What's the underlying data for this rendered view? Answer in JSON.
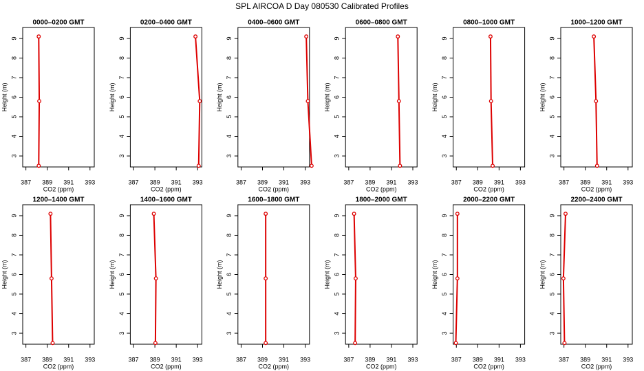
{
  "title": "SPL AIRCOA D  Day 080530  Calibrated Profiles",
  "chart_data": [
    {
      "type": "line",
      "title": "0000–0200 GMT",
      "x_label": "CO2 (ppm)",
      "y_label": "Height (m)",
      "color": "#dd0000",
      "x": [
        388.2,
        388.25,
        388.2
      ],
      "values": [
        9.1,
        5.8,
        2.5
      ],
      "xlim": [
        386.7,
        393.4
      ],
      "xticks": [
        387,
        389,
        391,
        393
      ],
      "ylim": [
        2.44,
        9.56
      ],
      "yticks": [
        3,
        4,
        5,
        6,
        7,
        8,
        9
      ]
    },
    {
      "type": "line",
      "title": "0200–0400 GMT",
      "x_label": "CO2 (ppm)",
      "y_label": "Height (m)",
      "color": "#dd0000",
      "x": [
        392.8,
        393.2,
        393.1
      ],
      "values": [
        9.1,
        5.8,
        2.5
      ],
      "xlim": [
        386.7,
        393.4
      ],
      "xticks": [
        387,
        389,
        391,
        393
      ],
      "ylim": [
        2.44,
        9.56
      ],
      "yticks": [
        3,
        4,
        5,
        6,
        7,
        8,
        9
      ]
    },
    {
      "type": "line",
      "title": "0400–0600 GMT",
      "x_label": "CO2 (ppm)",
      "y_label": "Height (m)",
      "color": "#dd0000",
      "x": [
        393.1,
        393.25,
        393.6
      ],
      "values": [
        9.1,
        5.8,
        2.5
      ],
      "xlim": [
        386.7,
        393.4
      ],
      "xticks": [
        387,
        389,
        391,
        393
      ],
      "ylim": [
        2.44,
        9.56
      ],
      "yticks": [
        3,
        4,
        5,
        6,
        7,
        8,
        9
      ]
    },
    {
      "type": "line",
      "title": "0600–0800 GMT",
      "x_label": "CO2 (ppm)",
      "y_label": "Height (m)",
      "color": "#dd0000",
      "x": [
        391.6,
        391.7,
        391.8
      ],
      "values": [
        9.1,
        5.8,
        2.5
      ],
      "xlim": [
        386.7,
        393.4
      ],
      "xticks": [
        387,
        389,
        391,
        393
      ],
      "ylim": [
        2.44,
        9.56
      ],
      "yticks": [
        3,
        4,
        5,
        6,
        7,
        8,
        9
      ]
    },
    {
      "type": "line",
      "title": "0800–1000 GMT",
      "x_label": "CO2 (ppm)",
      "y_label": "Height (m)",
      "color": "#dd0000",
      "x": [
        390.2,
        390.25,
        390.4
      ],
      "values": [
        9.1,
        5.8,
        2.5
      ],
      "xlim": [
        386.7,
        393.4
      ],
      "xticks": [
        387,
        389,
        391,
        393
      ],
      "ylim": [
        2.44,
        9.56
      ],
      "yticks": [
        3,
        4,
        5,
        6,
        7,
        8,
        9
      ]
    },
    {
      "type": "line",
      "title": "1000–1200 GMT",
      "x_label": "CO2 (ppm)",
      "y_label": "Height (m)",
      "color": "#dd0000",
      "x": [
        389.8,
        390.0,
        390.1
      ],
      "values": [
        9.1,
        5.8,
        2.5
      ],
      "xlim": [
        386.7,
        393.4
      ],
      "xticks": [
        387,
        389,
        391,
        393
      ],
      "ylim": [
        2.44,
        9.56
      ],
      "yticks": [
        3,
        4,
        5,
        6,
        7,
        8,
        9
      ]
    },
    {
      "type": "line",
      "title": "1200–1400 GMT",
      "x_label": "CO2 (ppm)",
      "y_label": "Height (m)",
      "color": "#dd0000",
      "x": [
        389.3,
        389.4,
        389.5
      ],
      "values": [
        9.1,
        5.8,
        2.5
      ],
      "xlim": [
        386.7,
        393.4
      ],
      "xticks": [
        387,
        389,
        391,
        393
      ],
      "ylim": [
        2.44,
        9.56
      ],
      "yticks": [
        3,
        4,
        5,
        6,
        7,
        8,
        9
      ]
    },
    {
      "type": "line",
      "title": "1400–1600 GMT",
      "x_label": "CO2 (ppm)",
      "y_label": "Height (m)",
      "color": "#dd0000",
      "x": [
        388.9,
        389.1,
        389.05
      ],
      "values": [
        9.1,
        5.8,
        2.5
      ],
      "xlim": [
        386.7,
        393.4
      ],
      "xticks": [
        387,
        389,
        391,
        393
      ],
      "ylim": [
        2.44,
        9.56
      ],
      "yticks": [
        3,
        4,
        5,
        6,
        7,
        8,
        9
      ]
    },
    {
      "type": "line",
      "title": "1600–1800 GMT",
      "x_label": "CO2 (ppm)",
      "y_label": "Height (m)",
      "color": "#dd0000",
      "x": [
        389.3,
        389.3,
        389.3
      ],
      "values": [
        9.1,
        5.8,
        2.5
      ],
      "xlim": [
        386.7,
        393.4
      ],
      "xticks": [
        387,
        389,
        391,
        393
      ],
      "ylim": [
        2.44,
        9.56
      ],
      "yticks": [
        3,
        4,
        5,
        6,
        7,
        8,
        9
      ]
    },
    {
      "type": "line",
      "title": "1800–2000 GMT",
      "x_label": "CO2 (ppm)",
      "y_label": "Height (m)",
      "color": "#dd0000",
      "x": [
        387.5,
        387.65,
        387.6
      ],
      "values": [
        9.1,
        5.8,
        2.5
      ],
      "xlim": [
        386.7,
        393.4
      ],
      "xticks": [
        387,
        389,
        391,
        393
      ],
      "ylim": [
        2.44,
        9.56
      ],
      "yticks": [
        3,
        4,
        5,
        6,
        7,
        8,
        9
      ]
    },
    {
      "type": "line",
      "title": "2000–2200 GMT",
      "x_label": "CO2 (ppm)",
      "y_label": "Height (m)",
      "color": "#dd0000",
      "x": [
        387.1,
        387.1,
        386.95
      ],
      "values": [
        9.1,
        5.8,
        2.5
      ],
      "xlim": [
        386.7,
        393.4
      ],
      "xticks": [
        387,
        389,
        391,
        393
      ],
      "ylim": [
        2.44,
        9.56
      ],
      "yticks": [
        3,
        4,
        5,
        6,
        7,
        8,
        9
      ]
    },
    {
      "type": "line",
      "title": "2200–2400 GMT",
      "x_label": "CO2 (ppm)",
      "y_label": "Height (m)",
      "color": "#dd0000",
      "x": [
        387.15,
        386.95,
        387.05
      ],
      "values": [
        9.1,
        5.8,
        2.5
      ],
      "xlim": [
        386.7,
        393.4
      ],
      "xticks": [
        387,
        389,
        391,
        393
      ],
      "ylim": [
        2.44,
        9.56
      ],
      "yticks": [
        3,
        4,
        5,
        6,
        7,
        8,
        9
      ]
    }
  ]
}
